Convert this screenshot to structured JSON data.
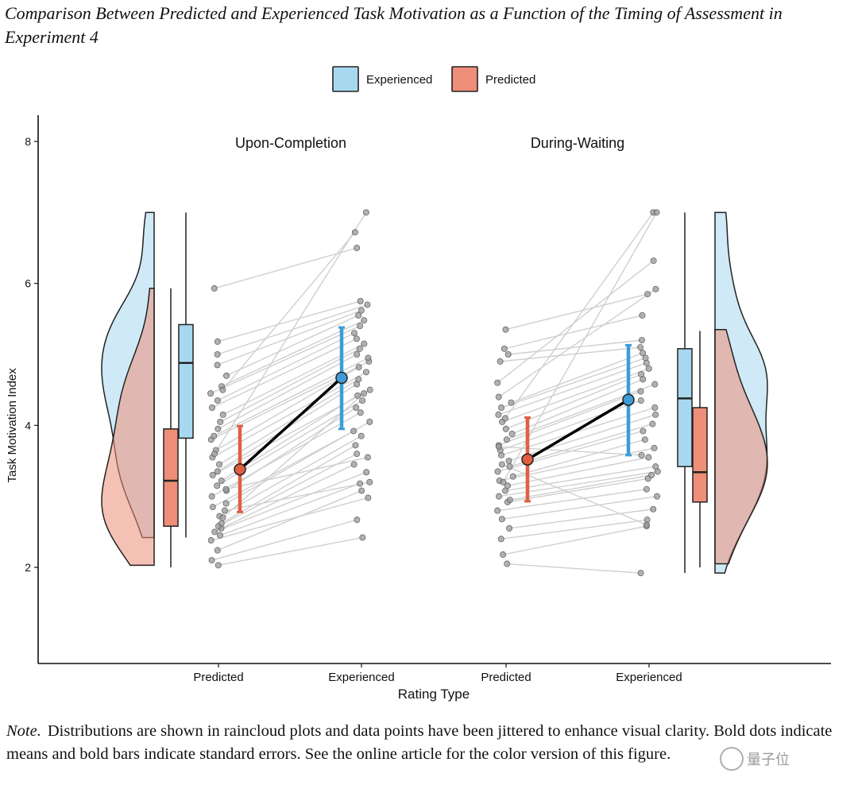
{
  "figure": {
    "title": "Comparison Between Predicted and Experienced Task Motivation as a Function of the Timing of Assessment in Experiment 4",
    "note_label": "Note.",
    "note_text": "Distributions are shown in raincloud plots and data points have been jittered to enhance visual clarity. Bold dots indicate means and bold bars indicate standard errors. See the online article for the color version of this figure.",
    "watermark": "量子位"
  },
  "colors": {
    "experienced": "#a8d8ef",
    "predicted": "#ee8e78",
    "experienced_strong": "#3e9bd8",
    "predicted_strong": "#df5f44",
    "lines": "#cfcfcf",
    "points": "#9a9a9a"
  },
  "chart_data": {
    "type": "raincloud",
    "ylabel": "Task Motivation Index",
    "xlabel": "Rating Type",
    "ylim": [
      0.8,
      8.4
    ],
    "yticks": [
      2,
      4,
      6,
      8
    ],
    "legend": [
      {
        "label": "Experienced",
        "color": "#a8d8ef"
      },
      {
        "label": "Predicted",
        "color": "#ee8e78"
      }
    ],
    "legend_position": "top-center",
    "panels": [
      {
        "title": "Upon-Completion",
        "categories": [
          "Predicted",
          "Experienced"
        ],
        "means": {
          "Predicted": 3.38,
          "Experienced": 4.67
        },
        "se": {
          "Predicted": [
            2.78,
            3.99
          ],
          "Experienced": [
            3.95,
            5.38
          ]
        },
        "boxplots": {
          "Predicted": {
            "whisker_low": 2.0,
            "q1": 2.58,
            "median": 3.22,
            "q3": 3.95,
            "whisker_high": 5.93
          },
          "Experienced": {
            "whisker_low": 2.42,
            "q1": 3.82,
            "median": 4.88,
            "q3": 5.42,
            "whisker_high": 7.0
          }
        },
        "pairs": [
          [
            2.03,
            2.42
          ],
          [
            2.1,
            2.67
          ],
          [
            2.24,
            3.08
          ],
          [
            2.38,
            2.98
          ],
          [
            2.45,
            3.18
          ],
          [
            2.5,
            3.34
          ],
          [
            2.55,
            3.45
          ],
          [
            2.58,
            3.6
          ],
          [
            2.62,
            3.72
          ],
          [
            2.72,
            3.85
          ],
          [
            2.85,
            3.92
          ],
          [
            2.9,
            4.05
          ],
          [
            3.0,
            4.18
          ],
          [
            3.08,
            4.25
          ],
          [
            3.15,
            4.35
          ],
          [
            3.22,
            4.42
          ],
          [
            3.3,
            4.5
          ],
          [
            3.35,
            4.58
          ],
          [
            3.45,
            4.65
          ],
          [
            3.55,
            4.75
          ],
          [
            3.65,
            4.82
          ],
          [
            3.8,
            4.9
          ],
          [
            3.85,
            4.95
          ],
          [
            3.95,
            5.0
          ],
          [
            4.05,
            5.08
          ],
          [
            4.15,
            5.15
          ],
          [
            4.25,
            5.22
          ],
          [
            4.35,
            5.3
          ],
          [
            4.45,
            5.4
          ],
          [
            4.55,
            5.48
          ],
          [
            4.7,
            5.55
          ],
          [
            4.85,
            5.62
          ],
          [
            5.0,
            5.7
          ],
          [
            5.18,
            5.75
          ],
          [
            5.93,
            6.5
          ],
          [
            4.5,
            6.72
          ],
          [
            3.6,
            7.0
          ],
          [
            2.8,
            3.2
          ],
          [
            3.1,
            3.55
          ],
          [
            2.7,
            4.45
          ]
        ]
      },
      {
        "title": "During-Waiting",
        "categories": [
          "Predicted",
          "Experienced"
        ],
        "means": {
          "Predicted": 3.52,
          "Experienced": 4.36
        },
        "se": {
          "Predicted": [
            2.93,
            4.11
          ],
          "Experienced": [
            3.58,
            5.13
          ]
        },
        "boxplots": {
          "Experienced": {
            "whisker_low": 1.92,
            "q1": 3.42,
            "median": 4.38,
            "q3": 5.08,
            "whisker_high": 7.0
          },
          "Predicted": {
            "whisker_low": 2.0,
            "q1": 2.92,
            "median": 3.34,
            "q3": 4.25,
            "whisker_high": 5.33
          }
        },
        "pairs": [
          [
            2.05,
            1.92
          ],
          [
            2.18,
            2.58
          ],
          [
            2.4,
            2.67
          ],
          [
            2.55,
            2.82
          ],
          [
            2.68,
            3.0
          ],
          [
            2.8,
            3.1
          ],
          [
            2.92,
            3.25
          ],
          [
            3.0,
            3.35
          ],
          [
            3.08,
            3.42
          ],
          [
            3.15,
            3.55
          ],
          [
            3.22,
            3.68
          ],
          [
            3.28,
            3.8
          ],
          [
            3.35,
            3.92
          ],
          [
            3.42,
            4.02
          ],
          [
            3.5,
            4.15
          ],
          [
            3.58,
            4.25
          ],
          [
            3.65,
            4.35
          ],
          [
            3.72,
            4.48
          ],
          [
            3.8,
            4.58
          ],
          [
            3.88,
            4.65
          ],
          [
            3.95,
            4.72
          ],
          [
            4.05,
            4.8
          ],
          [
            4.15,
            4.88
          ],
          [
            4.25,
            4.95
          ],
          [
            4.32,
            5.02
          ],
          [
            4.9,
            5.1
          ],
          [
            5.0,
            5.2
          ],
          [
            5.08,
            5.55
          ],
          [
            5.35,
            5.85
          ],
          [
            4.6,
            6.32
          ],
          [
            4.1,
            7.0
          ],
          [
            3.2,
            7.0
          ],
          [
            2.95,
            3.3
          ],
          [
            3.45,
            2.6
          ],
          [
            4.4,
            5.92
          ],
          [
            3.7,
            3.58
          ]
        ]
      }
    ]
  }
}
